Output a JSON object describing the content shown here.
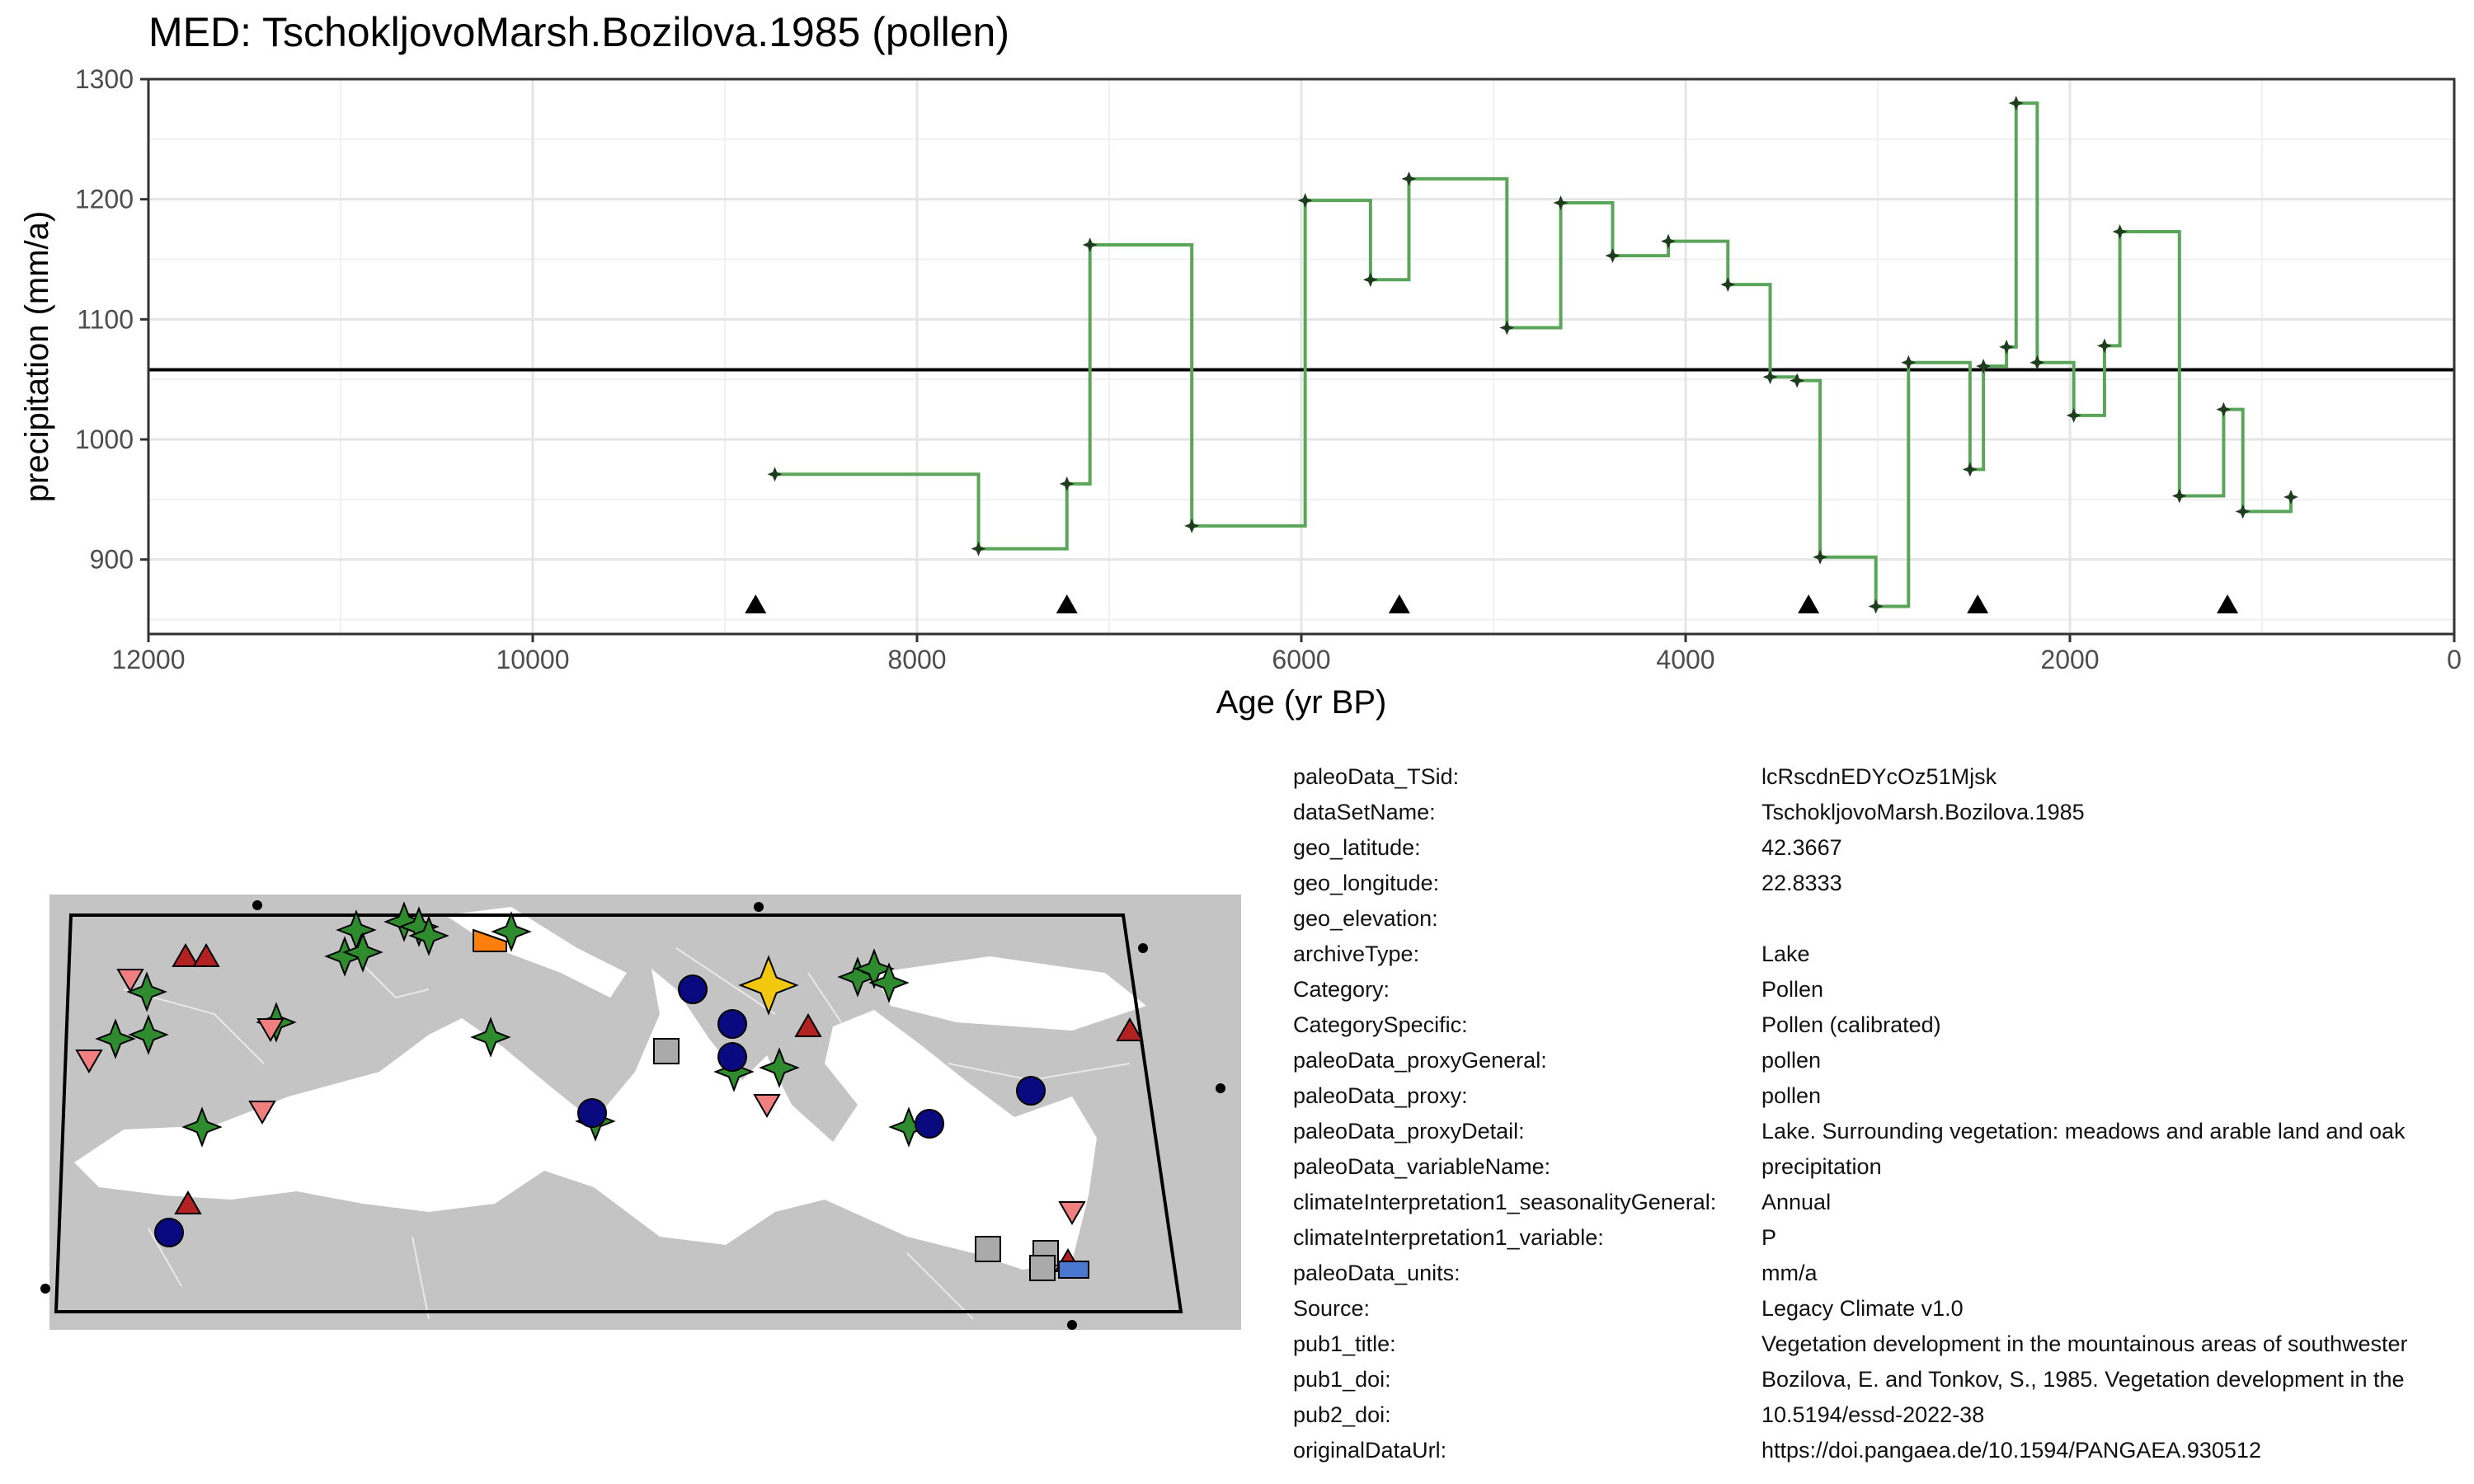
{
  "title": "MED: TschokljovoMarsh.Bozilova.1985 (pollen)",
  "chart_data": {
    "type": "line",
    "line_style": "step",
    "xlabel": "Age (yr BP)",
    "ylabel": "precipitation (mm/a)",
    "xlim": [
      12000,
      0
    ],
    "x_reversed": true,
    "ylim": [
      838,
      1300
    ],
    "x_ticks": [
      12000,
      10000,
      8000,
      6000,
      4000,
      2000,
      0
    ],
    "y_ticks": [
      900,
      1000,
      1100,
      1200,
      1300
    ],
    "grid": true,
    "reference_line": 1058,
    "colors": {
      "series": "#5aa55a",
      "point": "#1d3d1d",
      "reference": "#000000",
      "grid": "#e5e5e5"
    },
    "series": [
      {
        "x": [
          8740,
          7680,
          7220,
          7100,
          6570,
          5980,
          5640,
          5440,
          4930,
          4650,
          4380,
          4090,
          3780,
          3560,
          3420,
          3300,
          3010,
          2840,
          2520,
          2450,
          2330,
          2280,
          2170,
          1980,
          1820,
          1740,
          1430,
          1200,
          1100,
          850
        ],
        "y": [
          971,
          909,
          963,
          1162,
          928,
          1199,
          1133,
          1217,
          1093,
          1197,
          1153,
          1165,
          1129,
          1052,
          1049,
          902,
          861,
          1064,
          975,
          1061,
          1077,
          1280,
          1064,
          1020,
          1078,
          1173,
          953,
          1025,
          940,
          952
        ]
      }
    ],
    "markers": {
      "shape": "triangle",
      "x": [
        8840,
        7220,
        5490,
        3360,
        2480,
        1180
      ]
    }
  },
  "map": {
    "site_color": "#f2c80f",
    "symbol_colors": {
      "green_star": "#2e8b2e",
      "navy_circle": "#0a0a80",
      "red_triangle": "#b22222",
      "pink_triangle": "#f08080",
      "grey_square": "#aaaaaa",
      "orange": "#ff7f0e",
      "blue_rect": "#4a78d0",
      "land": "#c4c4c4",
      "sea": "#ffffff"
    }
  },
  "metadata": [
    {
      "key": "paleoData_TSid:",
      "value": "lcRscdnEDYcOz51Mjsk"
    },
    {
      "key": "dataSetName:",
      "value": "TschokljovoMarsh.Bozilova.1985"
    },
    {
      "key": "geo_latitude:",
      "value": "42.3667"
    },
    {
      "key": "geo_longitude:",
      "value": "22.8333"
    },
    {
      "key": "geo_elevation:",
      "value": ""
    },
    {
      "key": "archiveType:",
      "value": "Lake"
    },
    {
      "key": "Category:",
      "value": "Pollen"
    },
    {
      "key": "CategorySpecific:",
      "value": "Pollen (calibrated)"
    },
    {
      "key": "paleoData_proxyGeneral:",
      "value": "pollen"
    },
    {
      "key": "paleoData_proxy:",
      "value": "pollen"
    },
    {
      "key": "paleoData_proxyDetail:",
      "value": "Lake. Surrounding vegetation: meadows and arable land and oak"
    },
    {
      "key": "paleoData_variableName:",
      "value": "precipitation"
    },
    {
      "key": "climateInterpretation1_seasonalityGeneral:",
      "value": "Annual"
    },
    {
      "key": "climateInterpretation1_variable:",
      "value": "P"
    },
    {
      "key": "paleoData_units:",
      "value": "mm/a"
    },
    {
      "key": "Source:",
      "value": "Legacy Climate v1.0"
    },
    {
      "key": "pub1_title:",
      "value": "Vegetation development in the mountainous areas of southwester"
    },
    {
      "key": "pub1_doi:",
      "value": "Bozilova, E. and Tonkov, S., 1985. Vegetation development in the"
    },
    {
      "key": "pub2_doi:",
      "value": "10.5194/essd-2022-38"
    },
    {
      "key": "originalDataUrl:",
      "value": "https://doi.pangaea.de/10.1594/PANGAEA.930512"
    }
  ]
}
